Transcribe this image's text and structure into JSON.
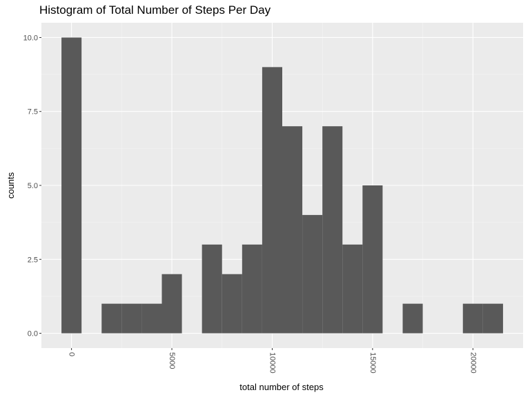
{
  "chart_data": {
    "type": "bar",
    "title": "Histogram of Total Number of Steps Per Day",
    "xlabel": "total number of steps",
    "ylabel": "counts",
    "binwidth": 1000,
    "bin_centers": [
      0,
      1000,
      2000,
      3000,
      4000,
      5000,
      6000,
      7000,
      8000,
      9000,
      10000,
      11000,
      12000,
      13000,
      14000,
      15000,
      16000,
      17000,
      18000,
      19000,
      20000,
      21000
    ],
    "values": [
      10,
      0,
      1,
      1,
      1,
      2,
      0,
      3,
      2,
      3,
      9,
      7,
      4,
      7,
      3,
      5,
      0,
      1,
      0,
      0,
      1,
      1
    ],
    "xlim": [
      -1500,
      22500
    ],
    "ylim": [
      -0.5,
      10.5
    ],
    "x_ticks": [
      0,
      5000,
      10000,
      15000,
      20000
    ],
    "x_tick_labels": [
      "0",
      "5000",
      "10000",
      "15000",
      "20000"
    ],
    "y_ticks": [
      0,
      2.5,
      5,
      7.5,
      10
    ],
    "y_tick_labels": [
      "0.0",
      "2.5",
      "5.0",
      "7.5",
      "10.0"
    ],
    "grid": true,
    "colors": {
      "bar": "#595959",
      "panel": "#ebebeb",
      "grid_major": "#ffffff",
      "grid_minor": "#f5f5f5"
    }
  }
}
